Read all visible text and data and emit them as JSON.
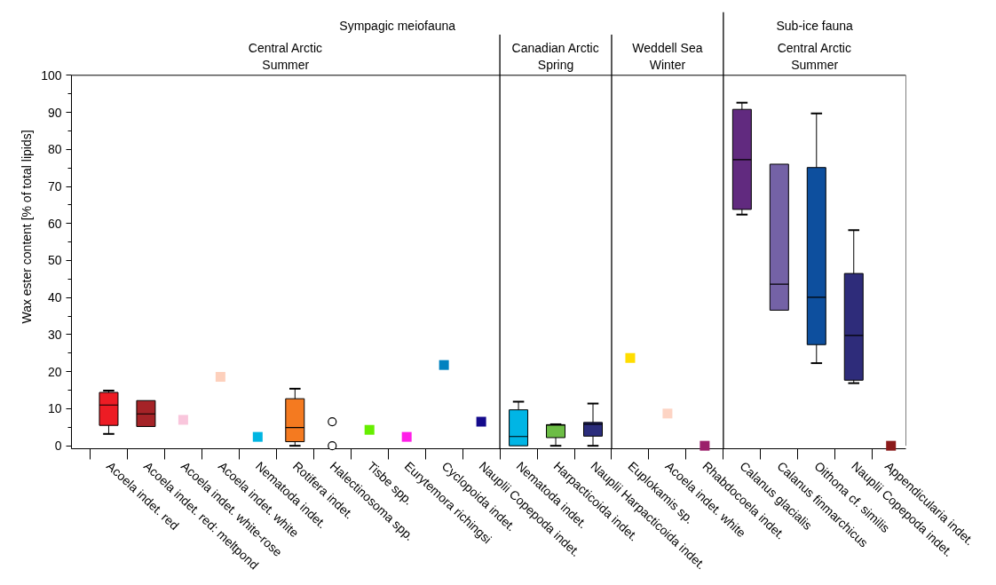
{
  "chart_data": {
    "type": "box",
    "ylabel": "Wax ester content [% of total lipids]",
    "categories": [
      "Acoela indet. red",
      "Acoela indet. red: meltpond",
      "Acoela indet. white-rose",
      "Acoela indet. white",
      "Nematoda indet.",
      "Rotifera indet.",
      "Halectinosoma spp.",
      "Tisbe spp.",
      "Eurytemora richingsi",
      "Cyclopoida indet.",
      "Nauplii Copepoda indet.",
      "Nematoda indet.",
      "Harpacticoida indet.",
      "Nauplii Harpacticoida indet.",
      "Euplokamis sp.",
      "Acoela indet. white",
      "Rhabdocoela indet.",
      "Calanus glacialis",
      "Calanus finmarchicus",
      "Oithona cf. similis",
      "Nauplii Copepoda indet.",
      "Appendicularia indet."
    ],
    "boxes": [
      {
        "low": 3.2,
        "q1": 5.5,
        "median": 11.0,
        "q3": 14.4,
        "high": 14.9
      },
      {
        "low": 5.2,
        "q1": 5.2,
        "median": 8.6,
        "q3": 12.2,
        "high": 12.2
      },
      null,
      null,
      null,
      {
        "low": 0,
        "q1": 1.1,
        "median": 4.9,
        "q3": 12.7,
        "high": 15.4
      },
      null,
      null,
      null,
      null,
      null,
      {
        "low": 0,
        "q1": 0,
        "median": 2.5,
        "q3": 9.7,
        "high": 11.9
      },
      {
        "low": 0,
        "q1": 2.2,
        "median": 5.6,
        "q3": 5.7,
        "high": 5.8
      },
      {
        "low": 0,
        "q1": 2.6,
        "median": 5.8,
        "q3": 6.3,
        "high": 11.4
      },
      null,
      null,
      null,
      {
        "low": 62.4,
        "q1": 63.8,
        "median": 77.2,
        "q3": 90.8,
        "high": 92.6
      },
      {
        "low": 36.6,
        "q1": 36.6,
        "median": 43.6,
        "q3": 76.0,
        "high": 76.0
      },
      {
        "low": 22.3,
        "q1": 27.3,
        "median": 40.1,
        "q3": 75.1,
        "high": 89.7
      },
      {
        "low": 16.9,
        "q1": 17.7,
        "median": 29.8,
        "q3": 46.5,
        "high": 58.2
      },
      null
    ],
    "colors": [
      "#ed1c24",
      "#a52327",
      null,
      null,
      null,
      "#f47a20",
      null,
      null,
      null,
      null,
      null,
      "#00b5e5",
      "#6cbd45",
      "#2b2d7c",
      null,
      null,
      null,
      "#612a7f",
      "#7462a6",
      "#0d4f9e",
      "#2e2c7a",
      null
    ],
    "series": [
      {
        "type": "scatter",
        "marker": "square",
        "values": [
          null,
          null,
          7.0,
          18.6,
          2.4,
          null,
          null,
          4.3,
          2.4,
          21.8,
          6.5,
          null,
          null,
          null,
          23.7,
          8.7,
          0,
          null,
          null,
          null,
          null,
          0
        ],
        "colors": [
          null,
          null,
          "#f9c6dc",
          "#fdd0bc",
          "#00b5e2",
          null,
          null,
          "#66ee00",
          "#ff1ee8",
          "#0082c0",
          "#140a8c",
          null,
          null,
          null,
          "#ffdd00",
          "#fdd4c4",
          "#9b1f6a",
          null,
          null,
          null,
          null,
          "#8b1a1a"
        ]
      },
      {
        "type": "scatter",
        "marker": "circle",
        "color": "#000000",
        "values": [
          null,
          null,
          null,
          null,
          null,
          null,
          6.5,
          null,
          null,
          null,
          null,
          null,
          null,
          null,
          null,
          null,
          null,
          null,
          null,
          null,
          null,
          null
        ]
      },
      {
        "type": "scatter",
        "marker": "circle",
        "color": "#000000",
        "values": [
          null,
          null,
          null,
          null,
          null,
          null,
          0,
          null,
          null,
          null,
          null,
          null,
          null,
          null,
          null,
          null,
          null,
          null,
          null,
          null,
          null,
          null
        ]
      }
    ],
    "ylim": [
      0,
      100
    ],
    "yticks": [
      0,
      10,
      20,
      30,
      40,
      50,
      60,
      70,
      80,
      90,
      100
    ],
    "annotations": [
      "Central Arctic\nSummer",
      "Canadian Arctic\nSpring",
      "Weddell Sea\nWinter",
      "Central Arctic\nSummer",
      "Sympagic meiofauna",
      "Sub-ice fauna"
    ],
    "grid": false
  }
}
